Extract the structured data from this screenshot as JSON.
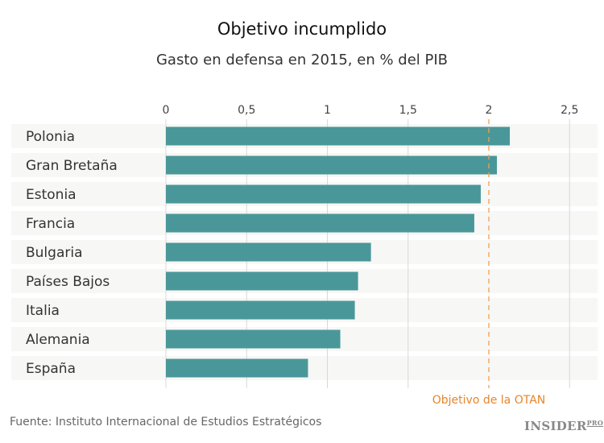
{
  "chart_data": {
    "type": "bar",
    "orientation": "horizontal",
    "title": "Objetivo incumplido",
    "subtitle": "Gasto en defensa en 2015, en % del PIB",
    "categories": [
      "Polonia",
      "Gran Bretaña",
      "Estonia",
      "Francia",
      "Bulgaria",
      "Países Bajos",
      "Italia",
      "Alemania",
      "España"
    ],
    "values": [
      2.13,
      2.05,
      1.95,
      1.91,
      1.27,
      1.19,
      1.17,
      1.08,
      0.88
    ],
    "xlim": [
      0,
      2.5
    ],
    "xticks": [
      0,
      0.5,
      1,
      1.5,
      2,
      2.5
    ],
    "xtick_labels": [
      "0",
      "0,5",
      "1",
      "1,5",
      "2",
      "2,5"
    ],
    "grid": true,
    "reference_line": {
      "value": 2,
      "label": "Objetivo de la OTAN",
      "color": "#f0a050"
    },
    "bar_color": "#4a9799",
    "label_color": "#e8852a",
    "source": "Fuente: Instituto Internacional de Estudios Estratégicos"
  },
  "logo": {
    "text": "INSIDER",
    "suffix": "PRO"
  }
}
